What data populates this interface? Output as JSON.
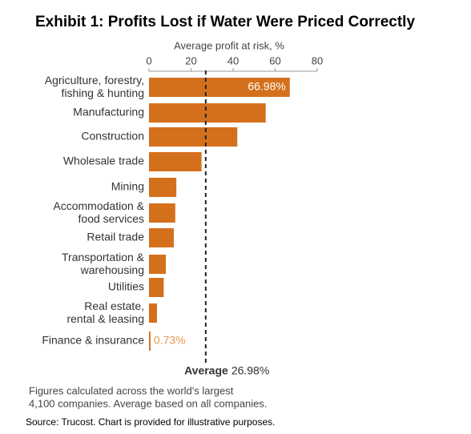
{
  "chart_data": {
    "type": "hbar",
    "title": "Exhibit 1: Profits Lost if Water Were Priced Correctly",
    "x_label": "Average profit at risk, %",
    "categories": [
      "Agriculture, forestry,\nfishing & hunting",
      "Manufacturing",
      "Construction",
      "Wholesale trade",
      "Mining",
      "Accommodation &\nfood services",
      "Retail trade",
      "Transportation &\nwarehousing",
      "Utilities",
      "Real estate,\nrental & leasing",
      "Finance & insurance"
    ],
    "values": [
      66.98,
      55.5,
      42,
      25,
      13,
      12.5,
      11.8,
      8,
      7,
      3.8,
      0.73
    ],
    "value_labels": [
      "66.98%",
      null,
      null,
      null,
      null,
      null,
      null,
      null,
      null,
      null,
      "0.73%"
    ],
    "color": "#d4701c",
    "xlim": [
      0,
      80
    ],
    "xticks": [
      0,
      20,
      40,
      60,
      80
    ],
    "average": {
      "label": "Average",
      "value": 26.98,
      "value_label": "26.98%"
    },
    "footnote": [
      "Figures calculated across the world's largest",
      "4,100 companies. Average based on all companies."
    ],
    "source": "Source: Trucost.  Chart is provided for illustrative purposes."
  }
}
